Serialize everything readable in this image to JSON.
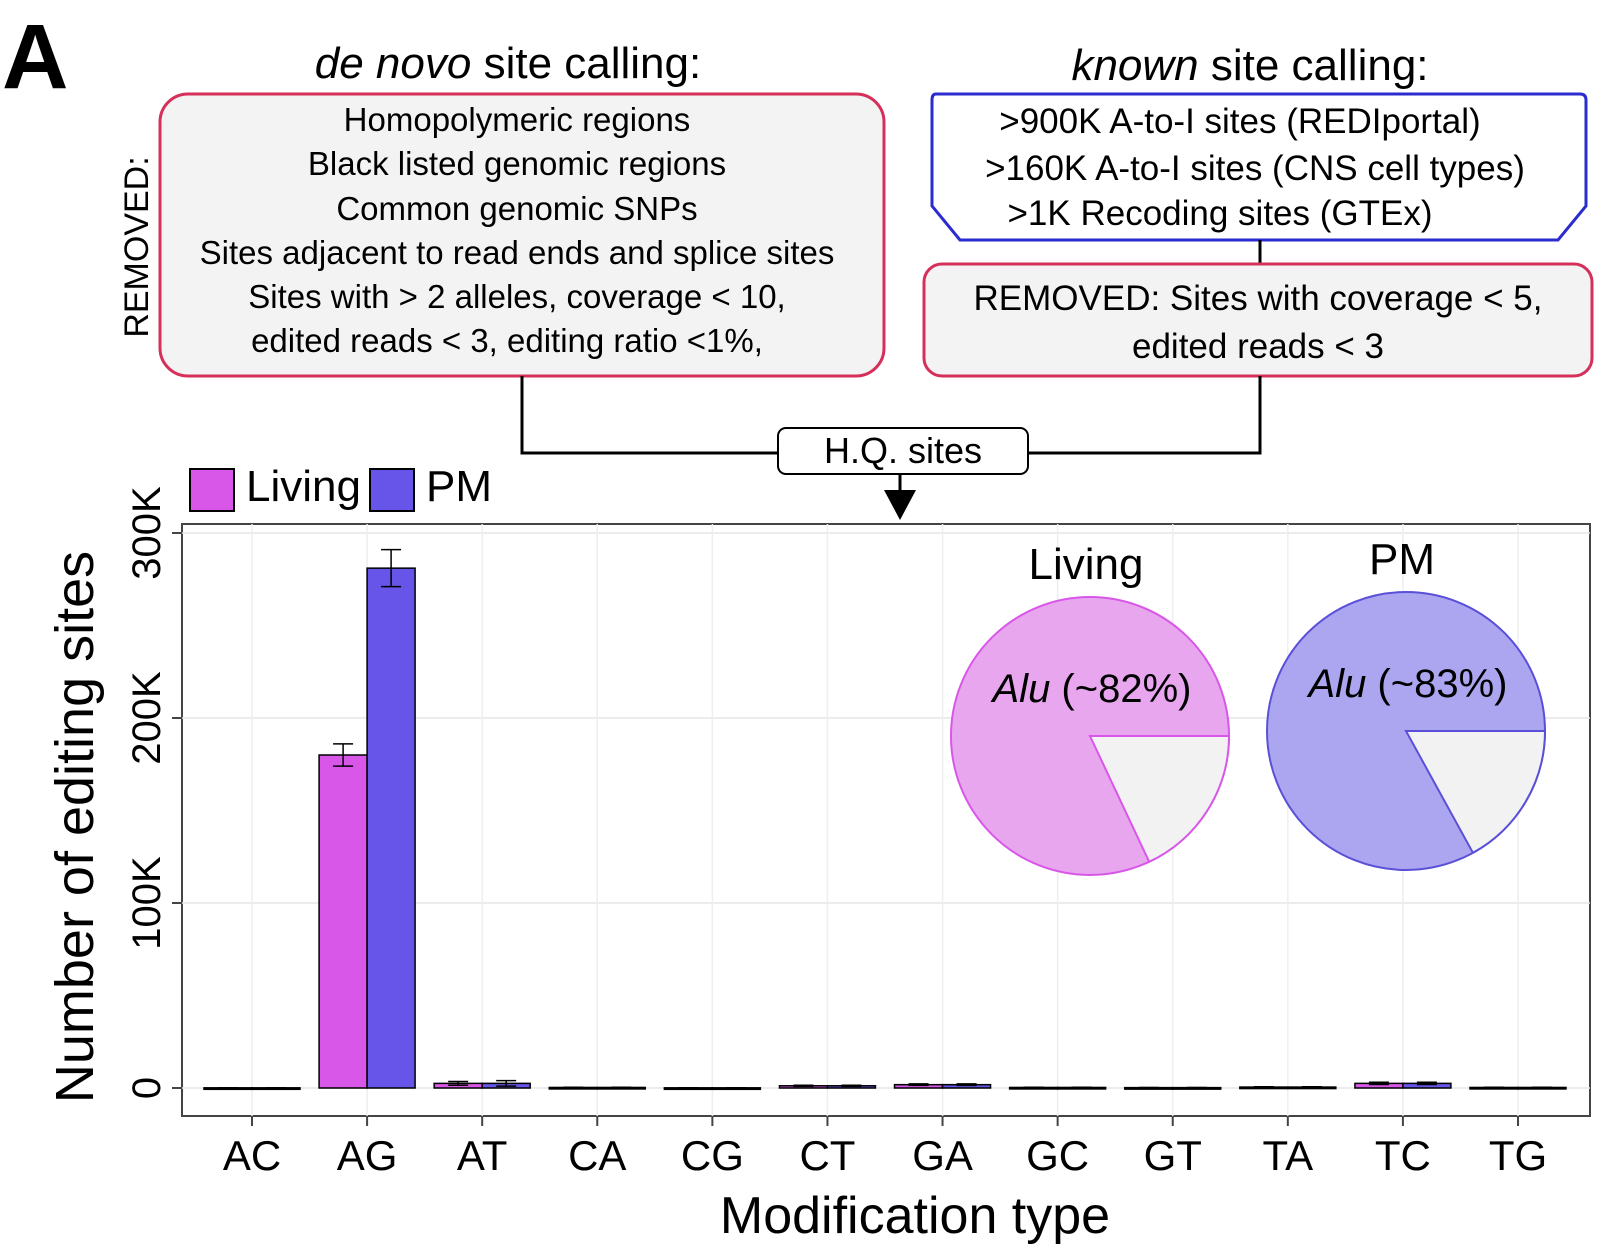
{
  "panel_label": "A",
  "workflow": {
    "denovo": {
      "title_italic": "de novo",
      "title_rest": " site calling:",
      "removed_label": "REMOVED:",
      "lines": [
        "Homopolymeric regions",
        "Black listed genomic regions",
        "Common genomic SNPs",
        "Sites adjacent to read ends and splice sites",
        "Sites with > 2 alleles, coverage < 10,",
        "edited reads < 3, editing ratio <1%,"
      ]
    },
    "known": {
      "title_italic": "known",
      "title_rest": " site calling:",
      "lines": [
        ">900K A-to-I sites (REDIportal)",
        ">160K A-to-I sites (CNS cell types)",
        ">1K Recoding sites (GTEx)"
      ],
      "removed_lines": [
        "REMOVED: Sites with coverage < 5,",
        "edited reads < 3"
      ]
    },
    "merge_label": "H.Q. sites"
  },
  "colors": {
    "living": "#d957e8",
    "pm": "#6655e8",
    "living_pie": "#e8a6ef",
    "pm_pie": "#aba6ef",
    "pie_other": "#f2f2f2",
    "removed_border": "#d6305a",
    "known_border": "#2b2bd0"
  },
  "chart_data": [
    {
      "type": "bar",
      "categories": [
        "AC",
        "AG",
        "AT",
        "CA",
        "CG",
        "CT",
        "GA",
        "GC",
        "GT",
        "TA",
        "TC",
        "TG"
      ],
      "series": [
        {
          "name": "Living",
          "values": [
            100,
            180000,
            2500,
            300,
            100,
            1200,
            1800,
            300,
            200,
            500,
            2500,
            300
          ],
          "errors": [
            50,
            6000,
            1000,
            100,
            50,
            300,
            400,
            100,
            50,
            150,
            600,
            100
          ]
        },
        {
          "name": "PM",
          "values": [
            100,
            281000,
            2500,
            300,
            100,
            1200,
            1800,
            300,
            200,
            500,
            2500,
            300
          ],
          "errors": [
            50,
            10000,
            1500,
            100,
            50,
            300,
            400,
            100,
            50,
            150,
            600,
            100
          ]
        }
      ],
      "ylim": [
        0,
        300000
      ],
      "yticks": [
        0,
        100000,
        200000,
        300000
      ],
      "ytick_labels": [
        "0",
        "100K",
        "200K",
        "300K"
      ],
      "xlabel": "Modification type",
      "ylabel": "Number of editing sites",
      "legend_position": "top-left (outside plot)",
      "grid": true
    },
    {
      "type": "pie",
      "title": "Living",
      "slices": [
        {
          "label": "Alu",
          "label_suffix": " (~82%)",
          "value": 82
        },
        {
          "label": "",
          "value": 18
        }
      ]
    },
    {
      "type": "pie",
      "title": "PM",
      "slices": [
        {
          "label": "Alu",
          "label_suffix": " (~83%)",
          "value": 83
        },
        {
          "label": "",
          "value": 17
        }
      ]
    }
  ]
}
